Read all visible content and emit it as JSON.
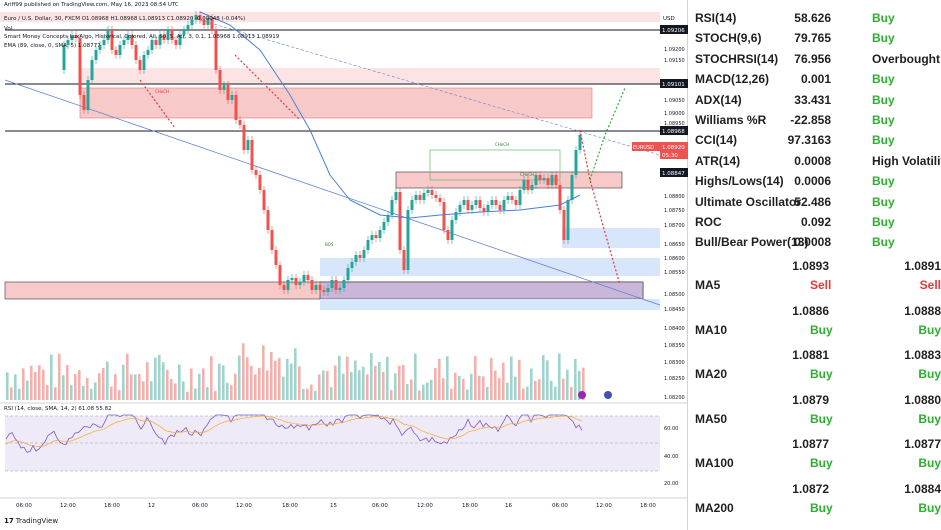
{
  "header": {
    "line1": "Ariff99 published on TradingView.com, May 16, 2023 08:54 UTC",
    "line2": "Euro / U.S. Dollar, 30, FXCM  O1.08968  H1.08968  L1.08913  C1.08920  -0.00048 (-0.04%)",
    "line3": "Vol",
    "line4": "Smart Money Concepts LuxAlgo, Historical, Colored, All, 50, 5, Atr, 3, 0.1, 1.08968  1.08913  1.08919",
    "line5": "EMA (89, close, 0, SMA, 5)  1.08777",
    "rsi_label": "RSI (14, close, SMA, 14, 2)  61.08  55.82"
  },
  "currency_label": "USD",
  "price_axis": [
    "1.09200",
    "1.09150",
    "1.09050",
    "1.09000",
    "1.08950",
    "1.08900",
    "1.08800",
    "1.08750",
    "1.08700",
    "1.08650",
    "1.08600",
    "1.08550",
    "1.08500",
    "1.08450",
    "1.08400",
    "1.08350",
    "1.08300",
    "1.08250",
    "1.08200"
  ],
  "price_tags": {
    "top": "1.09206",
    "p1": "1.09101",
    "p2": "1.08968",
    "current_symbol": "EURUSD",
    "current": "1.08920",
    "countdown": "05:30",
    "p3": "1.08847"
  },
  "rsi_axis": [
    "60.00",
    "40.00",
    "20.00"
  ],
  "time_axis": [
    "06:00",
    "12:00",
    "18:00",
    "12",
    "06:00",
    "12:00",
    "18:00",
    "15",
    "06:00",
    "12:00",
    "18:00",
    "16",
    "06:00",
    "12:00",
    "18:00"
  ],
  "chart_labels": {
    "choch1": "CHoCH",
    "choch2": "CHoCH",
    "choch3": "CHoCH",
    "bos": "BOS"
  },
  "branding": {
    "logo_text": "TradingView"
  },
  "indicators": [
    {
      "name": "RSI(14)",
      "value": "58.626",
      "action": "Buy"
    },
    {
      "name": "STOCH(9,6)",
      "value": "79.765",
      "action": "Buy"
    },
    {
      "name": "STOCHRSI(14)",
      "value": "76.956",
      "action": "Overbought"
    },
    {
      "name": "MACD(12,26)",
      "value": "0.001",
      "action": "Buy"
    },
    {
      "name": "ADX(14)",
      "value": "33.431",
      "action": "Buy"
    },
    {
      "name": "Williams %R",
      "value": "-22.858",
      "action": "Buy"
    },
    {
      "name": "CCI(14)",
      "value": "97.3163",
      "action": "Buy"
    },
    {
      "name": "ATR(14)",
      "value": "0.0008",
      "action": "High Volatility"
    },
    {
      "name": "Highs/Lows(14)",
      "value": "0.0006",
      "action": "Buy"
    },
    {
      "name": "Ultimate Oscillator",
      "value": "52.486",
      "action": "Buy"
    },
    {
      "name": "ROC",
      "value": "0.092",
      "action": "Buy"
    },
    {
      "name": "Bull/Bear Power(13)",
      "value": "0.0008",
      "action": "Buy"
    }
  ],
  "moving_averages": [
    {
      "name": "MA5",
      "simple": "1.0893",
      "simple_action": "Sell",
      "exp": "1.0891",
      "exp_action": "Sell"
    },
    {
      "name": "MA10",
      "simple": "1.0886",
      "simple_action": "Buy",
      "exp": "1.0888",
      "exp_action": "Buy"
    },
    {
      "name": "MA20",
      "simple": "1.0881",
      "simple_action": "Buy",
      "exp": "1.0883",
      "exp_action": "Buy"
    },
    {
      "name": "MA50",
      "simple": "1.0879",
      "simple_action": "Buy",
      "exp": "1.0880",
      "exp_action": "Buy"
    },
    {
      "name": "MA100",
      "simple": "1.0877",
      "simple_action": "Buy",
      "exp": "1.0877",
      "exp_action": "Buy"
    },
    {
      "name": "MA200",
      "simple": "1.0872",
      "simple_action": "Buy",
      "exp": "1.0884",
      "exp_action": "Buy"
    }
  ],
  "colors": {
    "buy": "#2eae2e",
    "sell": "#e53935",
    "up_candle": "#26a69a",
    "down_candle": "#ef5350",
    "zone_red": "#f8b4b4",
    "zone_blue": "#bcd4f7",
    "ema": "#4a7fd6",
    "rsi_line": "#7e57c2"
  }
}
